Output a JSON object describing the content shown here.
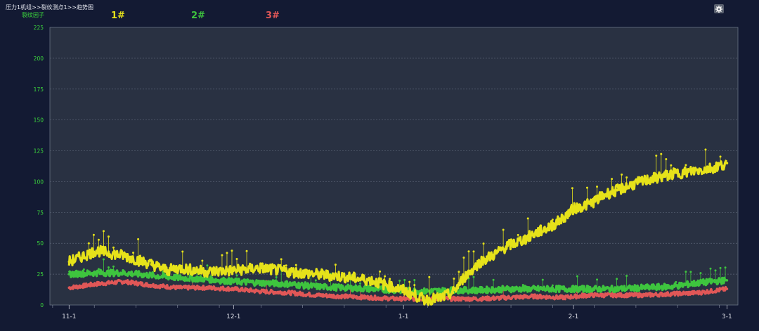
{
  "header": {
    "breadcrumb": "压力1机组>>裂纹测点1>>趋势图"
  },
  "chart_data": {
    "type": "scatter",
    "title": "",
    "ylabel": "裂纹因子",
    "xlabel": "",
    "ylim": [
      0,
      225
    ],
    "yticks": [
      0,
      25,
      50,
      75,
      100,
      125,
      150,
      175,
      200,
      225
    ],
    "x_tick_labels": [
      "11-1",
      "12-1",
      "1-1",
      "2-1",
      "3-1"
    ],
    "x_tick_positions": [
      0,
      30,
      61,
      92,
      120
    ],
    "xlim": [
      -3.5,
      122
    ],
    "grid": true,
    "legend_placement": "top-left",
    "series": [
      {
        "name": "1#",
        "color": "#e6e21a",
        "x": [
          0,
          5,
          10,
          15,
          18,
          20,
          25,
          30,
          35,
          40,
          45,
          50,
          55,
          58,
          61,
          63,
          65,
          68,
          70,
          72,
          75,
          78,
          80,
          83,
          85,
          88,
          90,
          92,
          95,
          98,
          100,
          103,
          106,
          110,
          113,
          116,
          118,
          120
        ],
        "values": [
          35,
          44,
          40,
          33,
          28,
          30,
          27,
          28,
          30,
          27,
          25,
          23,
          20,
          16,
          12,
          8,
          4,
          6,
          10,
          22,
          35,
          42,
          48,
          53,
          58,
          64,
          70,
          78,
          82,
          90,
          93,
          98,
          102,
          106,
          108,
          110,
          112,
          115
        ]
      },
      {
        "name": "2#",
        "color": "#3ec43e",
        "x": [
          0,
          5,
          10,
          15,
          20,
          25,
          30,
          35,
          40,
          45,
          50,
          55,
          60,
          65,
          70,
          75,
          80,
          85,
          90,
          95,
          100,
          105,
          110,
          115,
          120
        ],
        "values": [
          25,
          26,
          26,
          24,
          22,
          21,
          19,
          18,
          17,
          15,
          14,
          13,
          12,
          11,
          12,
          12,
          13,
          13,
          13,
          13,
          13,
          14,
          15,
          18,
          20
        ]
      },
      {
        "name": "3#",
        "color": "#e05757",
        "x": [
          0,
          5,
          10,
          15,
          20,
          25,
          30,
          35,
          40,
          45,
          50,
          55,
          60,
          65,
          70,
          75,
          80,
          85,
          90,
          95,
          100,
          105,
          110,
          115,
          120
        ],
        "values": [
          14,
          17,
          19,
          16,
          14,
          14,
          13,
          11,
          10,
          8,
          7,
          6,
          5,
          5,
          5,
          5,
          6,
          7,
          6,
          8,
          8,
          8,
          9,
          10,
          13
        ]
      }
    ],
    "colors": {
      "background": "#131a33",
      "plot_bg": "#293142",
      "grid": "#5a6375",
      "axis_text": "#3ddc3d",
      "x_text": "#d9dbe3"
    }
  },
  "icons": {
    "settings": "gear-icon"
  }
}
